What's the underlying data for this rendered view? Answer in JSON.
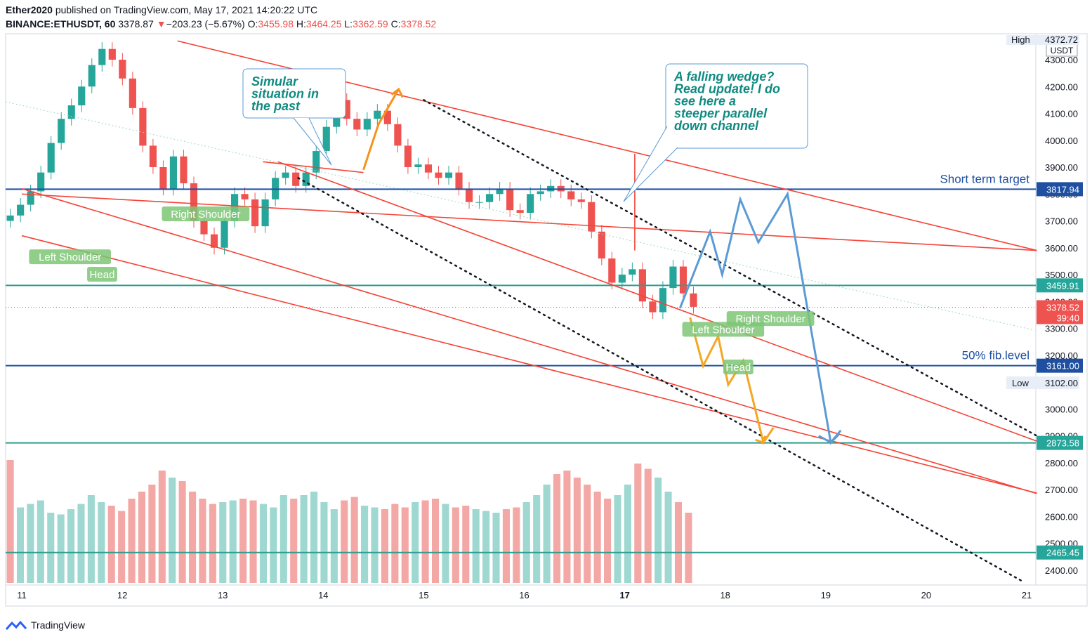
{
  "header": {
    "author": "Ether2020",
    "published": " published on TradingView.com, May 17, 2021 14:20:22 UTC",
    "symbol": "BINANCE:ETHUSDT, 60",
    "last": "3378.87",
    "arrow": "▼",
    "change": "−203.23 (−5.67%)",
    "o_label": "O:",
    "o_val": "3455.98",
    "h_label": "H:",
    "h_val": "3464.25",
    "l_label": "L:",
    "l_val": "3362.59",
    "c_label": "C:",
    "c_val": "3378.52"
  },
  "footer": {
    "brand": "TradingView"
  },
  "colors": {
    "up": "#26a69a",
    "down": "#ef5350",
    "channel": "#f44336",
    "blue": "#1e4fa0",
    "teal": "#2e9e8e",
    "orange": "#f5a623",
    "proj": "#5b9bd5"
  },
  "chart_data": {
    "type": "candlestick",
    "x_ticks": [
      "11",
      "12",
      "13",
      "14",
      "15",
      "16",
      "17",
      "18",
      "19",
      "20",
      "21"
    ],
    "y_ticks": [
      "4300.00",
      "4200.00",
      "4100.00",
      "4000.00",
      "3900.00",
      "3800.00",
      "3700.00",
      "3600.00",
      "3500.00",
      "3400.00",
      "3300.00",
      "3200.00",
      "3100.00",
      "3000.00",
      "2900.00",
      "2800.00",
      "2700.00",
      "2600.00",
      "2500.00",
      "2400.00"
    ],
    "ylim": [
      2350,
      4420
    ],
    "currency": "USDT",
    "high_label": "High",
    "high_value": "4372.72",
    "low_label": "Low",
    "low_value": "3102.00",
    "price_tags": [
      {
        "value": "3817.94",
        "price": 3817.94,
        "color": "#1e4fa0"
      },
      {
        "value": "3459.91",
        "price": 3459.91,
        "color": "#26a69a"
      },
      {
        "value": "3378.52",
        "price": 3378.52,
        "color": "#ef5350",
        "sub": "39:40"
      },
      {
        "value": "3161.00",
        "price": 3161.0,
        "color": "#1e4fa0"
      },
      {
        "value": "2873.58",
        "price": 2873.58,
        "color": "#26a69a"
      },
      {
        "value": "2465.45",
        "price": 2465.45,
        "color": "#26a69a"
      }
    ],
    "horizontal_lines": [
      {
        "price": 3817.94,
        "color": "#1e4fa0"
      },
      {
        "price": 3459.91,
        "color": "#2e9e8e"
      },
      {
        "price": 3161.0,
        "color": "#1e4fa0"
      },
      {
        "price": 2873.58,
        "color": "#2e9e8e"
      },
      {
        "price": 2465.45,
        "color": "#2e9e8e"
      }
    ],
    "level_texts": [
      {
        "text": "Short term target",
        "price": 3817.94
      },
      {
        "text": "50% fib.level",
        "price": 3161.0
      }
    ],
    "channel_lines": [
      {
        "from": [
          0.0,
          3800
        ],
        "to": [
          10.1,
          3590
        ]
      },
      {
        "from": [
          0.0,
          3820
        ],
        "to": [
          10.1,
          2685
        ]
      },
      {
        "from": [
          0.0,
          3645
        ],
        "to": [
          10.1,
          2687
        ]
      },
      {
        "from": [
          1.55,
          4370
        ],
        "to": [
          10.1,
          3590
        ]
      },
      {
        "from": [
          2.55,
          3920
        ],
        "to": [
          10.1,
          2880
        ]
      }
    ],
    "dotted_lines": [
      {
        "from": [
          2.75,
          3860
        ],
        "to": [
          9.95,
          2360
        ]
      },
      {
        "from": [
          4.0,
          4150
        ],
        "to": [
          10.1,
          2900
        ]
      }
    ],
    "closes": [
      3720,
      3760,
      3810,
      3880,
      3990,
      4080,
      4130,
      4200,
      4280,
      4340,
      4300,
      4230,
      4120,
      3980,
      3900,
      3820,
      3940,
      3840,
      3700,
      3650,
      3600,
      3700,
      3800,
      3780,
      3680,
      3780,
      3860,
      3880,
      3830,
      3880,
      3960,
      4050,
      4150,
      4080,
      4040,
      4080,
      4110,
      4060,
      3980,
      3900,
      3910,
      3880,
      3860,
      3880,
      3820,
      3770,
      3770,
      3800,
      3820,
      3740,
      3730,
      3800,
      3810,
      3830,
      3810,
      3780,
      3770,
      3660,
      3560,
      3470,
      3500,
      3520,
      3400,
      3360,
      3450,
      3530,
      3430,
      3380
    ],
    "volumes": [
      700,
      430,
      450,
      470,
      400,
      390,
      420,
      450,
      500,
      460,
      440,
      410,
      480,
      520,
      560,
      640,
      600,
      580,
      520,
      480,
      450,
      460,
      470,
      480,
      470,
      450,
      430,
      500,
      480,
      500,
      520,
      460,
      420,
      470,
      490,
      440,
      430,
      420,
      450,
      430,
      460,
      470,
      480,
      450,
      430,
      440,
      420,
      410,
      400,
      420,
      430,
      460,
      500,
      560,
      620,
      640,
      600,
      560,
      520,
      480,
      500,
      560,
      680,
      650,
      600,
      520,
      460,
      400
    ]
  },
  "annotations": {
    "similar": {
      "lines": [
        "Simular",
        "situation in",
        "the past"
      ]
    },
    "wedge": {
      "lines": [
        "A falling wedge?",
        "Read update! I do",
        "see here a",
        "steeper parallel",
        "down channel"
      ]
    },
    "labels": [
      {
        "text": "Left Shoulder",
        "x": 0.48,
        "price": 3565
      },
      {
        "text": "Head",
        "x": 0.8,
        "price": 3500
      },
      {
        "text": "Right Shoulder",
        "x": 1.83,
        "price": 3725
      },
      {
        "text": "Left Shoulder",
        "x": 6.98,
        "price": 3295
      },
      {
        "text": "Head",
        "x": 7.13,
        "price": 3155
      },
      {
        "text": "Right Shoulder",
        "x": 7.45,
        "price": 3335
      }
    ]
  }
}
